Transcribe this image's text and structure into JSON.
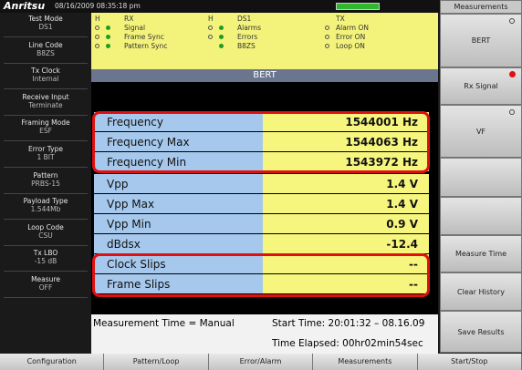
{
  "header": {
    "brand": "Anritsu",
    "datetime": "08/16/2009 08:35:18 pm"
  },
  "sidebar": [
    {
      "label": "Test Mode",
      "value": "DS1"
    },
    {
      "label": "Line Code",
      "value": "B8ZS"
    },
    {
      "label": "Tx Clock",
      "value": "Internal"
    },
    {
      "label": "Receive Input",
      "value": "Terminate"
    },
    {
      "label": "Framing Mode",
      "value": "ESF"
    },
    {
      "label": "Error Type",
      "value": "1 BIT"
    },
    {
      "label": "Pattern",
      "value": "PRBS-15"
    },
    {
      "label": "Payload Type",
      "value": "1.544Mb"
    },
    {
      "label": "Loop Code",
      "value": "CSU"
    },
    {
      "label": "Tx LBO",
      "value": "-15 dB"
    },
    {
      "label": "Measure",
      "value": "OFF"
    }
  ],
  "status": [
    {
      "header": "H",
      "title": "RX",
      "items": [
        "Signal",
        "Frame Sync",
        "Pattern Sync"
      ]
    },
    {
      "header": "H",
      "title": "DS1",
      "items": [
        "Alarms",
        "Errors",
        "B8ZS"
      ]
    },
    {
      "title": "TX",
      "items": [
        "Alarm ON",
        "Error ON",
        "Loop ON"
      ]
    }
  ],
  "panel": {
    "title": "BERT",
    "rows": [
      {
        "label": "Frequency",
        "value": "1544001 Hz"
      },
      {
        "label": "Frequency Max",
        "value": "1544063 Hz"
      },
      {
        "label": "Frequency Min",
        "value": "1543972 Hz"
      },
      {
        "label": "Vpp",
        "value": "1.4 V"
      },
      {
        "label": "Vpp Max",
        "value": "1.4 V"
      },
      {
        "label": "Vpp Min",
        "value": "0.9 V"
      },
      {
        "label": "dBdsx",
        "value": "-12.4"
      },
      {
        "label": "Clock Slips",
        "value": "--"
      },
      {
        "label": "Frame Slips",
        "value": "--"
      }
    ]
  },
  "footer": {
    "measurement_time": "Measurement Time = Manual",
    "start_time": "Start Time: 20:01:32 – 08.16.09",
    "elapsed": "Time Elapsed: 00hr02min54sec"
  },
  "softkeys": {
    "title": "Measurements",
    "keys": [
      "BERT",
      "Rx Signal",
      "VF",
      "Measure Time",
      "Clear History",
      "Save Results"
    ]
  },
  "menu": [
    "Configuration",
    "Pattern/Loop",
    "Error/Alarm",
    "Measurements",
    "Start/Stop"
  ]
}
